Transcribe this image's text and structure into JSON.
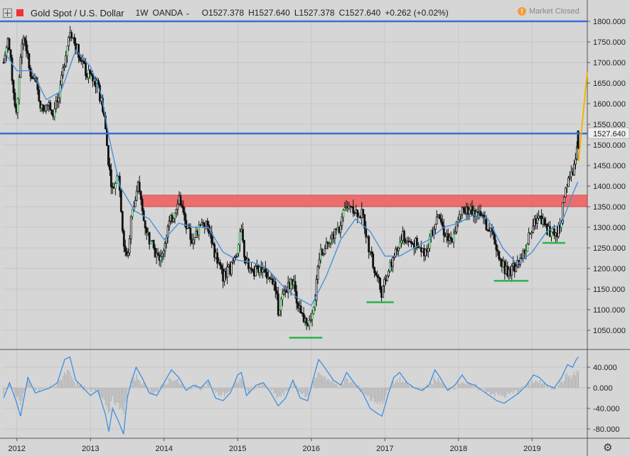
{
  "header": {
    "symbol": "Gold Spot / U.S. Dollar",
    "interval": "1W",
    "source": "OANDA",
    "open": "O1527.378",
    "high": "H1527.640",
    "low": "L1527.378",
    "close": "C1527.640",
    "change": "+0.262 (+0.02%)",
    "market_status": "Market Closed",
    "market_status_icon": "exclamation-icon"
  },
  "colors": {
    "background": "#d6d6d6",
    "candle": "#111111",
    "bull_candle": "#1a8a2a",
    "moving_average": "#4a90d9",
    "resistance_line": "#3a6fd8",
    "supply_zone": "#ee5b5b",
    "support_marker": "#2ab34a",
    "projection_line": "#f5b400",
    "oscillator": "#3d8fe0",
    "histogram": "#a8a8a8"
  },
  "chart_data": [
    {
      "type": "candlestick",
      "title": "",
      "xlabel": "",
      "ylabel": "",
      "x_ticks": [
        "2012",
        "2013",
        "2014",
        "2015",
        "2016",
        "2017",
        "2018",
        "2019"
      ],
      "x_range": [
        2011.8,
        2019.75
      ],
      "y_ticks": [
        "1800.000",
        "1750.000",
        "1700.000",
        "1650.000",
        "1600.000",
        "1550.000",
        "1500.000",
        "1450.000",
        "1400.000",
        "1350.000",
        "1300.000",
        "1250.000",
        "1200.000",
        "1150.000",
        "1100.000",
        "1050.000"
      ],
      "ylim": [
        1012,
        1823
      ],
      "last_price_label": "1527.640",
      "price_path": [
        [
          2011.82,
          1700
        ],
        [
          2011.88,
          1760
        ],
        [
          2011.95,
          1640
        ],
        [
          2012.0,
          1560
        ],
        [
          2012.05,
          1720
        ],
        [
          2012.1,
          1770
        ],
        [
          2012.17,
          1680
        ],
        [
          2012.25,
          1650
        ],
        [
          2012.35,
          1580
        ],
        [
          2012.42,
          1600
        ],
        [
          2012.5,
          1580
        ],
        [
          2012.58,
          1620
        ],
        [
          2012.66,
          1720
        ],
        [
          2012.72,
          1780
        ],
        [
          2012.8,
          1740
        ],
        [
          2012.88,
          1710
        ],
        [
          2012.95,
          1670
        ],
        [
          2013.02,
          1670
        ],
        [
          2013.1,
          1640
        ],
        [
          2013.18,
          1580
        ],
        [
          2013.25,
          1450
        ],
        [
          2013.3,
          1390
        ],
        [
          2013.38,
          1430
        ],
        [
          2013.45,
          1260
        ],
        [
          2013.5,
          1220
        ],
        [
          2013.55,
          1320
        ],
        [
          2013.65,
          1400
        ],
        [
          2013.72,
          1320
        ],
        [
          2013.8,
          1270
        ],
        [
          2013.9,
          1230
        ],
        [
          2013.96,
          1220
        ],
        [
          2014.05,
          1300
        ],
        [
          2014.15,
          1340
        ],
        [
          2014.2,
          1380
        ],
        [
          2014.3,
          1300
        ],
        [
          2014.4,
          1260
        ],
        [
          2014.5,
          1320
        ],
        [
          2014.6,
          1300
        ],
        [
          2014.7,
          1230
        ],
        [
          2014.8,
          1180
        ],
        [
          2014.9,
          1200
        ],
        [
          2015.0,
          1250
        ],
        [
          2015.05,
          1290
        ],
        [
          2015.1,
          1220
        ],
        [
          2015.2,
          1190
        ],
        [
          2015.3,
          1200
        ],
        [
          2015.4,
          1190
        ],
        [
          2015.5,
          1170
        ],
        [
          2015.55,
          1100
        ],
        [
          2015.65,
          1150
        ],
        [
          2015.75,
          1170
        ],
        [
          2015.85,
          1090
        ],
        [
          2015.96,
          1060
        ],
        [
          2016.05,
          1130
        ],
        [
          2016.12,
          1240
        ],
        [
          2016.2,
          1250
        ],
        [
          2016.3,
          1280
        ],
        [
          2016.4,
          1300
        ],
        [
          2016.45,
          1340
        ],
        [
          2016.52,
          1360
        ],
        [
          2016.6,
          1340
        ],
        [
          2016.7,
          1330
        ],
        [
          2016.76,
          1270
        ],
        [
          2016.85,
          1200
        ],
        [
          2016.96,
          1140
        ],
        [
          2017.05,
          1200
        ],
        [
          2017.15,
          1240
        ],
        [
          2017.25,
          1280
        ],
        [
          2017.35,
          1260
        ],
        [
          2017.45,
          1260
        ],
        [
          2017.55,
          1240
        ],
        [
          2017.65,
          1290
        ],
        [
          2017.72,
          1340
        ],
        [
          2017.8,
          1290
        ],
        [
          2017.9,
          1270
        ],
        [
          2017.96,
          1300
        ],
        [
          2018.05,
          1340
        ],
        [
          2018.15,
          1340
        ],
        [
          2018.25,
          1340
        ],
        [
          2018.32,
          1320
        ],
        [
          2018.4,
          1300
        ],
        [
          2018.48,
          1270
        ],
        [
          2018.56,
          1230
        ],
        [
          2018.62,
          1200
        ],
        [
          2018.7,
          1190
        ],
        [
          2018.78,
          1210
        ],
        [
          2018.88,
          1230
        ],
        [
          2018.96,
          1280
        ],
        [
          2019.05,
          1320
        ],
        [
          2019.12,
          1320
        ],
        [
          2019.22,
          1290
        ],
        [
          2019.32,
          1280
        ],
        [
          2019.4,
          1320
        ],
        [
          2019.45,
          1400
        ],
        [
          2019.52,
          1420
        ],
        [
          2019.58,
          1450
        ],
        [
          2019.62,
          1527.64
        ]
      ],
      "moving_average": [
        [
          2011.85,
          1720
        ],
        [
          2012.0,
          1680
        ],
        [
          2012.2,
          1680
        ],
        [
          2012.4,
          1610
        ],
        [
          2012.6,
          1630
        ],
        [
          2012.8,
          1730
        ],
        [
          2013.0,
          1690
        ],
        [
          2013.15,
          1620
        ],
        [
          2013.25,
          1520
        ],
        [
          2013.4,
          1400
        ],
        [
          2013.6,
          1340
        ],
        [
          2013.8,
          1320
        ],
        [
          2014.0,
          1270
        ],
        [
          2014.2,
          1310
        ],
        [
          2014.4,
          1300
        ],
        [
          2014.6,
          1300
        ],
        [
          2014.8,
          1240
        ],
        [
          2015.0,
          1220
        ],
        [
          2015.2,
          1215
        ],
        [
          2015.4,
          1200
        ],
        [
          2015.6,
          1160
        ],
        [
          2015.8,
          1130
        ],
        [
          2016.0,
          1110
        ],
        [
          2016.2,
          1180
        ],
        [
          2016.4,
          1270
        ],
        [
          2016.6,
          1320
        ],
        [
          2016.8,
          1290
        ],
        [
          2017.0,
          1230
        ],
        [
          2017.2,
          1230
        ],
        [
          2017.4,
          1250
        ],
        [
          2017.6,
          1270
        ],
        [
          2017.8,
          1300
        ],
        [
          2018.0,
          1310
        ],
        [
          2018.2,
          1330
        ],
        [
          2018.4,
          1320
        ],
        [
          2018.6,
          1250
        ],
        [
          2018.8,
          1210
        ],
        [
          2019.0,
          1240
        ],
        [
          2019.2,
          1290
        ],
        [
          2019.4,
          1310
        ],
        [
          2019.55,
          1380
        ],
        [
          2019.62,
          1410
        ]
      ],
      "resistance_lines": [
        1800,
        1527.64
      ],
      "supply_zone": {
        "x_start": 2013.7,
        "x_end": 2019.75,
        "y_low": 1350,
        "y_high": 1378
      },
      "support_markers": [
        {
          "x_start": 2015.7,
          "x_end": 2016.15,
          "y": 1032
        },
        {
          "x_start": 2016.75,
          "x_end": 2017.12,
          "y": 1118
        },
        {
          "x_start": 2018.48,
          "x_end": 2018.95,
          "y": 1170
        },
        {
          "x_start": 2019.14,
          "x_end": 2019.45,
          "y": 1262
        }
      ],
      "projection": {
        "from": [
          2019.63,
          1460
        ],
        "to": [
          2019.75,
          1678
        ]
      }
    },
    {
      "type": "line",
      "title": "",
      "xlabel": "",
      "ylabel": "",
      "y_ticks": [
        "40.000",
        "0.000",
        "-40.000",
        "-80.000"
      ],
      "ylim": [
        -95,
        75
      ],
      "oscillator": [
        [
          2011.82,
          -20
        ],
        [
          2011.9,
          10
        ],
        [
          2012.0,
          -30
        ],
        [
          2012.05,
          -55
        ],
        [
          2012.15,
          20
        ],
        [
          2012.25,
          -10
        ],
        [
          2012.35,
          -5
        ],
        [
          2012.45,
          0
        ],
        [
          2012.55,
          10
        ],
        [
          2012.65,
          55
        ],
        [
          2012.72,
          60
        ],
        [
          2012.8,
          15
        ],
        [
          2012.9,
          0
        ],
        [
          2013.0,
          -15
        ],
        [
          2013.1,
          -5
        ],
        [
          2013.2,
          -50
        ],
        [
          2013.25,
          -85
        ],
        [
          2013.3,
          -40
        ],
        [
          2013.38,
          -65
        ],
        [
          2013.45,
          -90
        ],
        [
          2013.5,
          -20
        ],
        [
          2013.55,
          10
        ],
        [
          2013.62,
          40
        ],
        [
          2013.7,
          20
        ],
        [
          2013.8,
          -10
        ],
        [
          2013.9,
          -15
        ],
        [
          2014.0,
          10
        ],
        [
          2014.1,
          35
        ],
        [
          2014.2,
          20
        ],
        [
          2014.3,
          -5
        ],
        [
          2014.4,
          5
        ],
        [
          2014.5,
          0
        ],
        [
          2014.6,
          15
        ],
        [
          2014.7,
          -20
        ],
        [
          2014.8,
          -25
        ],
        [
          2014.9,
          -10
        ],
        [
          2015.0,
          25
        ],
        [
          2015.05,
          30
        ],
        [
          2015.12,
          -15
        ],
        [
          2015.25,
          5
        ],
        [
          2015.35,
          10
        ],
        [
          2015.45,
          -10
        ],
        [
          2015.55,
          -35
        ],
        [
          2015.65,
          -20
        ],
        [
          2015.75,
          15
        ],
        [
          2015.85,
          -20
        ],
        [
          2015.95,
          -25
        ],
        [
          2016.05,
          30
        ],
        [
          2016.1,
          55
        ],
        [
          2016.18,
          40
        ],
        [
          2016.3,
          15
        ],
        [
          2016.4,
          5
        ],
        [
          2016.48,
          30
        ],
        [
          2016.58,
          10
        ],
        [
          2016.7,
          -10
        ],
        [
          2016.8,
          -40
        ],
        [
          2016.9,
          -50
        ],
        [
          2016.96,
          -55
        ],
        [
          2017.05,
          -10
        ],
        [
          2017.12,
          20
        ],
        [
          2017.2,
          30
        ],
        [
          2017.3,
          10
        ],
        [
          2017.4,
          0
        ],
        [
          2017.5,
          -5
        ],
        [
          2017.6,
          5
        ],
        [
          2017.68,
          35
        ],
        [
          2017.75,
          20
        ],
        [
          2017.85,
          -5
        ],
        [
          2017.95,
          5
        ],
        [
          2018.05,
          25
        ],
        [
          2018.12,
          10
        ],
        [
          2018.22,
          5
        ],
        [
          2018.32,
          -5
        ],
        [
          2018.42,
          -15
        ],
        [
          2018.52,
          -25
        ],
        [
          2018.62,
          -30
        ],
        [
          2018.72,
          -20
        ],
        [
          2018.82,
          -10
        ],
        [
          2018.92,
          5
        ],
        [
          2019.02,
          25
        ],
        [
          2019.1,
          20
        ],
        [
          2019.2,
          5
        ],
        [
          2019.3,
          0
        ],
        [
          2019.4,
          20
        ],
        [
          2019.48,
          45
        ],
        [
          2019.55,
          40
        ],
        [
          2019.6,
          55
        ],
        [
          2019.63,
          60
        ]
      ]
    }
  ]
}
